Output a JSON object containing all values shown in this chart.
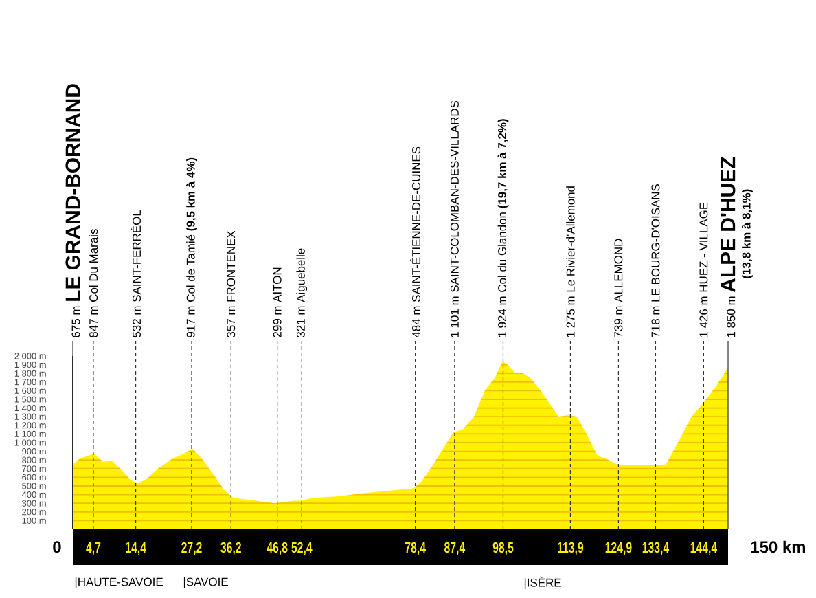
{
  "chart_data": {
    "type": "area",
    "color": "#fff100",
    "x": [
      0,
      1.7,
      4.8,
      6.9,
      9.0,
      11.1,
      13.2,
      14.8,
      16.9,
      19.5,
      22.6,
      25.3,
      27.4,
      29.5,
      32.1,
      34.7,
      36.8,
      42.0,
      46.2,
      50.4,
      52.4,
      54.6,
      60.9,
      67.2,
      73.5,
      77.7,
      78.2,
      79.8,
      82.4,
      85.0,
      87.1,
      89.2,
      91.8,
      94.4,
      96.5,
      98.4,
      99.7,
      101.3,
      102.8,
      104.9,
      108.1,
      111.2,
      113.5,
      115.4,
      117.5,
      120.1,
      122.7,
      124.6,
      129.0,
      133.0,
      135.8,
      138.5,
      141.6,
      144.2,
      147.4,
      150
    ],
    "values": [
      750,
      820,
      870,
      780,
      790,
      690,
      570,
      530,
      580,
      700,
      810,
      870,
      930,
      820,
      640,
      450,
      360,
      330,
      300,
      330,
      330,
      360,
      380,
      420,
      450,
      470,
      480,
      550,
      740,
      950,
      1120,
      1150,
      1300,
      1610,
      1740,
      1940,
      1890,
      1800,
      1810,
      1740,
      1530,
      1300,
      1320,
      1300,
      1110,
      850,
      800,
      750,
      740,
      740,
      750,
      1000,
      1300,
      1450,
      1660,
      1870
    ],
    "xlim": [
      0,
      150
    ],
    "ylim": [
      0,
      2000
    ],
    "xticks": [
      {
        "value": 4.7,
        "label": "4,7"
      },
      {
        "value": 14.4,
        "label": "14,4"
      },
      {
        "value": 27.2,
        "label": "27,2"
      },
      {
        "value": 36.2,
        "label": "36,2"
      },
      {
        "value": 46.8,
        "label": "46,8"
      },
      {
        "value": 52.4,
        "label": "52,4"
      },
      {
        "value": 78.4,
        "label": "78,4"
      },
      {
        "value": 87.4,
        "label": "87,4"
      },
      {
        "value": 98.5,
        "label": "98,5"
      },
      {
        "value": 113.9,
        "label": "113,9"
      },
      {
        "value": 124.9,
        "label": "124,9"
      },
      {
        "value": 133.4,
        "label": "133,4"
      },
      {
        "value": 144.4,
        "label": "144,4"
      }
    ],
    "yticks": [
      {
        "value": 100,
        "label": "100 m"
      },
      {
        "value": 200,
        "label": "200 m"
      },
      {
        "value": 300,
        "label": "300 m"
      },
      {
        "value": 400,
        "label": "400 m"
      },
      {
        "value": 500,
        "label": "500 m"
      },
      {
        "value": 600,
        "label": "600 m"
      },
      {
        "value": 700,
        "label": "700 m"
      },
      {
        "value": 800,
        "label": "800 m"
      },
      {
        "value": 900,
        "label": "900 m"
      },
      {
        "value": 1000,
        "label": "1 000 m"
      },
      {
        "value": 1100,
        "label": "1 100 m"
      },
      {
        "value": 1200,
        "label": "1 200 m"
      },
      {
        "value": 1300,
        "label": "1 300 m"
      },
      {
        "value": 1400,
        "label": "1 400 m"
      },
      {
        "value": 1500,
        "label": "1 500 m"
      },
      {
        "value": 1600,
        "label": "1 600 m"
      },
      {
        "value": 1700,
        "label": "1 700 m"
      },
      {
        "value": 1800,
        "label": "1 800 m"
      },
      {
        "value": 1900,
        "label": "1 900 m"
      },
      {
        "value": 2000,
        "label": "2 000 m"
      }
    ],
    "grid": "y",
    "ref_lines": [
      {
        "axis": "x",
        "value": 0,
        "label": "675 m **LE GRAND-BORNAND**",
        "line_style": "solid"
      },
      {
        "axis": "x",
        "value": 4.7,
        "label": "847 m Col Du Marais",
        "line_style": "dashed"
      },
      {
        "axis": "x",
        "value": 14.4,
        "label": "532 m SAINT-FERRÉOL",
        "line_style": "dashed"
      },
      {
        "axis": "x",
        "value": 27.2,
        "label": "917 m Col de Tamié **(9,5 km à 4%)**",
        "line_style": "dashed"
      },
      {
        "axis": "x",
        "value": 36.2,
        "label": "357 m FRONTENEX",
        "line_style": "dashed"
      },
      {
        "axis": "x",
        "value": 46.8,
        "label": "299 m AITON",
        "line_style": "dashed"
      },
      {
        "axis": "x",
        "value": 52.4,
        "label": "321 m Aiguebelle",
        "line_style": "dashed"
      },
      {
        "axis": "x",
        "value": 78.4,
        "label": "484 m SAINT-ÉTIENNE-DE-CUINES",
        "line_style": "dashed"
      },
      {
        "axis": "x",
        "value": 87.4,
        "label": "1 101 m SAINT-COLOMBAN-DES-VILLARDS",
        "line_style": "dashed"
      },
      {
        "axis": "x",
        "value": 98.5,
        "label": "1 924 m Col du Glandon **(19,7 km à 7,2%)**",
        "line_style": "dashed"
      },
      {
        "axis": "x",
        "value": 113.9,
        "label": "1 275 m Le Rivier-d'Allemond",
        "line_style": "dashed"
      },
      {
        "axis": "x",
        "value": 124.9,
        "label": "739 m ALLEMOND",
        "line_style": "dashed"
      },
      {
        "axis": "x",
        "value": 133.4,
        "label": "718 m LE BOURG-D'OISANS",
        "line_style": "dashed"
      },
      {
        "axis": "x",
        "value": 144.4,
        "label": "1 426 m HUEZ - VILLAGE",
        "line_style": "dashed"
      },
      {
        "axis": "x",
        "value": 150,
        "label": "1 850 m **ALPE D'HUEZ**",
        "line_style": "solid"
      }
    ],
    "annotations": [
      "0",
      "150 km",
      "(13,8 km à 8,1%)",
      "|HAUTE-SAVOIE",
      "|SAVOIE",
      "|ISÈRE"
    ]
  }
}
